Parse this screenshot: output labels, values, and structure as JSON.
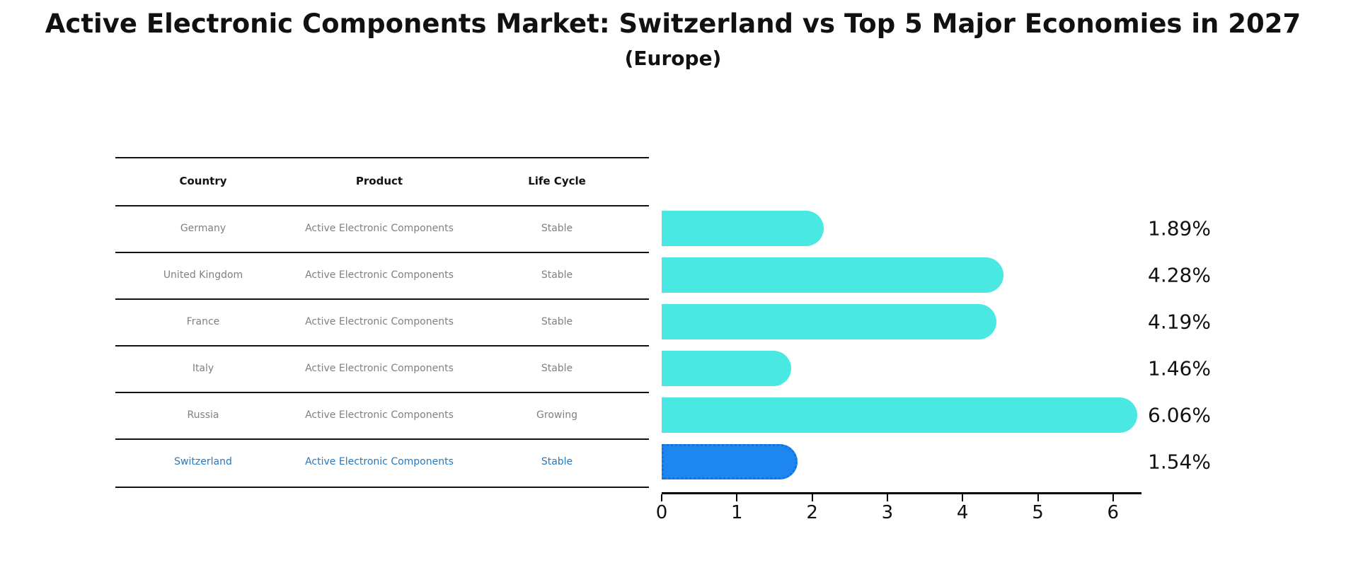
{
  "page": {
    "title": "Active Electronic Components Market: Switzerland vs Top 5 Major Economies in 2027",
    "subtitle": "(Europe)"
  },
  "colors": {
    "bar_default": "#4AE8E2",
    "bar_highlight": "#1E86F0",
    "bar_highlight_border": "#1273DE",
    "highlight_text": "#2878BE",
    "row_text": "#808080",
    "header_text": "#111111",
    "axis": "#000000"
  },
  "table": {
    "headers": [
      "Country",
      "Product",
      "Life Cycle"
    ],
    "rows": [
      {
        "country": "Germany",
        "product": "Active Electronic Components",
        "life_cycle": "Stable",
        "highlight": false
      },
      {
        "country": "United Kingdom",
        "product": "Active Electronic Components",
        "life_cycle": "Stable",
        "highlight": false
      },
      {
        "country": "France",
        "product": "Active Electronic Components",
        "life_cycle": "Stable",
        "highlight": false
      },
      {
        "country": "Italy",
        "product": "Active Electronic Components",
        "life_cycle": "Stable",
        "highlight": false
      },
      {
        "country": "Russia",
        "product": "Active Electronic Components",
        "life_cycle": "Growing",
        "highlight": false
      },
      {
        "country": "Switzerland",
        "product": "Active Electronic Components",
        "life_cycle": "Stable",
        "highlight": true
      }
    ]
  },
  "chart_data": {
    "type": "bar",
    "orientation": "horizontal",
    "title": "Active Electronic Components Market: Switzerland vs Top 5 Major Economies in 2027",
    "subtitle": "(Europe)",
    "categories": [
      "Germany",
      "United Kingdom",
      "France",
      "Italy",
      "Russia",
      "Switzerland"
    ],
    "values": [
      1.89,
      4.28,
      4.19,
      1.46,
      6.06,
      1.54
    ],
    "value_labels": [
      "1.89%",
      "4.28%",
      "4.19%",
      "1.46%",
      "6.06%",
      "1.54%"
    ],
    "highlight_category": "Switzerland",
    "xlabel": "",
    "ylabel": "",
    "xlim": [
      0,
      6.4
    ],
    "x_tick_labels": [
      "0",
      "1",
      "2",
      "3",
      "4",
      "5",
      "6"
    ],
    "grid": false,
    "legend": false
  }
}
